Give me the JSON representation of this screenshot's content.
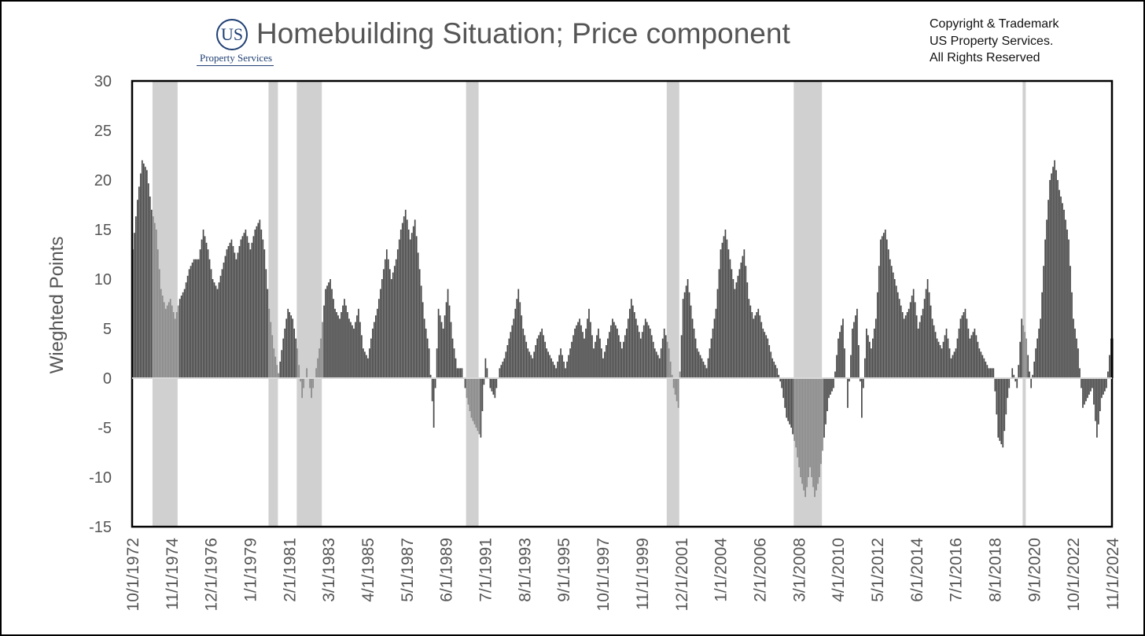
{
  "header": {
    "logo_mark": "US",
    "logo_text": "Property Services",
    "title": "Homebuilding Situation; Price component",
    "copyright_lines": [
      "Copyright & Trademark",
      "US Property Services.",
      "All Rights Reserved"
    ]
  },
  "colors": {
    "bar": "#474747",
    "recession_band": "#d0d0d0",
    "bar_in_recession": "#8a8a8a",
    "logo": "#1f3f73"
  },
  "chart_data": {
    "type": "bar",
    "title": "Homebuilding Situation; Price component",
    "xlabel": "",
    "ylabel": "Wieghted Points",
    "ylim": [
      -15,
      30
    ],
    "y_ticks": [
      30,
      25,
      20,
      15,
      10,
      5,
      0,
      -5,
      -10,
      -15
    ],
    "x_range": [
      "1972-10-01",
      "2024-11-01"
    ],
    "x_tick_labels": [
      "10/1/1972",
      "11/1/1974",
      "12/1/1976",
      "1/1/1979",
      "2/1/1981",
      "3/1/1983",
      "4/1/1985",
      "5/1/1987",
      "6/1/1989",
      "7/1/1991",
      "8/1/1993",
      "9/1/1995",
      "10/1/1997",
      "11/1/1999",
      "12/1/2001",
      "1/1/2004",
      "2/1/2006",
      "3/1/2008",
      "4/1/2010",
      "5/1/2012",
      "6/1/2014",
      "7/1/2016",
      "8/1/2018",
      "9/1/2020",
      "10/1/2022",
      "11/1/2024"
    ],
    "grid": false,
    "legend": "none",
    "recession_bands": [
      {
        "start": "1973-11-01",
        "end": "1975-03-01"
      },
      {
        "start": "1980-01-01",
        "end": "1980-07-01"
      },
      {
        "start": "1981-07-01",
        "end": "1982-11-01"
      },
      {
        "start": "1990-07-01",
        "end": "1991-03-01"
      },
      {
        "start": "2001-03-01",
        "end": "2001-11-01"
      },
      {
        "start": "2007-12-01",
        "end": "2009-06-01"
      },
      {
        "start": "2020-02-01",
        "end": "2020-04-01"
      }
    ],
    "series_note": "Monthly values approximated from the figure",
    "series": [
      {
        "points": [
          [
            "1972-10",
            13
          ],
          [
            "1973-01",
            18
          ],
          [
            "1973-04",
            22
          ],
          [
            "1973-07",
            21
          ],
          [
            "1973-10",
            17
          ],
          [
            "1974-01",
            15
          ],
          [
            "1974-04",
            9
          ],
          [
            "1974-07",
            7
          ],
          [
            "1974-10",
            8
          ],
          [
            "1975-01",
            6
          ],
          [
            "1975-04",
            8
          ],
          [
            "1975-07",
            9
          ],
          [
            "1975-10",
            11
          ],
          [
            "1976-01",
            12
          ],
          [
            "1976-04",
            12
          ],
          [
            "1976-07",
            15
          ],
          [
            "1976-10",
            13
          ],
          [
            "1977-01",
            10
          ],
          [
            "1977-04",
            9
          ],
          [
            "1977-07",
            11
          ],
          [
            "1977-10",
            13
          ],
          [
            "1978-01",
            14
          ],
          [
            "1978-04",
            12
          ],
          [
            "1978-07",
            14
          ],
          [
            "1978-10",
            15
          ],
          [
            "1979-01",
            13
          ],
          [
            "1979-04",
            15
          ],
          [
            "1979-07",
            16
          ],
          [
            "1979-10",
            13
          ],
          [
            "1980-01",
            7
          ],
          [
            "1980-04",
            3
          ],
          [
            "1980-07",
            0.5
          ],
          [
            "1980-10",
            4
          ],
          [
            "1981-01",
            7
          ],
          [
            "1981-04",
            6
          ],
          [
            "1981-07",
            3
          ],
          [
            "1981-10",
            -2
          ],
          [
            "1982-01",
            1
          ],
          [
            "1982-04",
            -2
          ],
          [
            "1982-07",
            1
          ],
          [
            "1982-10",
            4
          ],
          [
            "1983-01",
            9
          ],
          [
            "1983-04",
            10
          ],
          [
            "1983-07",
            7
          ],
          [
            "1983-10",
            6
          ],
          [
            "1984-01",
            8
          ],
          [
            "1984-04",
            6
          ],
          [
            "1984-07",
            5
          ],
          [
            "1984-10",
            7
          ],
          [
            "1985-01",
            3
          ],
          [
            "1985-04",
            2
          ],
          [
            "1985-07",
            5
          ],
          [
            "1985-10",
            7
          ],
          [
            "1986-01",
            10
          ],
          [
            "1986-04",
            13
          ],
          [
            "1986-07",
            10
          ],
          [
            "1986-10",
            12
          ],
          [
            "1987-01",
            15
          ],
          [
            "1987-04",
            17
          ],
          [
            "1987-07",
            14
          ],
          [
            "1987-10",
            16
          ],
          [
            "1988-01",
            11
          ],
          [
            "1988-04",
            6
          ],
          [
            "1988-07",
            3
          ],
          [
            "1988-10",
            -5
          ],
          [
            "1989-01",
            7
          ],
          [
            "1989-04",
            5
          ],
          [
            "1989-07",
            9
          ],
          [
            "1989-10",
            4
          ],
          [
            "1990-01",
            1
          ],
          [
            "1990-04",
            1
          ],
          [
            "1990-07",
            -2
          ],
          [
            "1990-10",
            -4
          ],
          [
            "1991-01",
            -5
          ],
          [
            "1991-04",
            -6
          ],
          [
            "1991-07",
            2
          ],
          [
            "1991-10",
            -1
          ],
          [
            "1992-01",
            -2
          ],
          [
            "1992-04",
            1
          ],
          [
            "1992-07",
            2
          ],
          [
            "1992-10",
            4
          ],
          [
            "1993-01",
            6
          ],
          [
            "1993-04",
            9
          ],
          [
            "1993-07",
            5
          ],
          [
            "1993-10",
            3
          ],
          [
            "1994-01",
            2
          ],
          [
            "1994-04",
            4
          ],
          [
            "1994-07",
            5
          ],
          [
            "1994-10",
            3
          ],
          [
            "1995-01",
            2
          ],
          [
            "1995-04",
            1
          ],
          [
            "1995-07",
            3
          ],
          [
            "1995-10",
            1
          ],
          [
            "1996-01",
            3
          ],
          [
            "1996-04",
            5
          ],
          [
            "1996-07",
            6
          ],
          [
            "1996-10",
            4
          ],
          [
            "1997-01",
            7
          ],
          [
            "1997-04",
            3
          ],
          [
            "1997-07",
            5
          ],
          [
            "1997-10",
            2
          ],
          [
            "1998-01",
            4
          ],
          [
            "1998-04",
            6
          ],
          [
            "1998-07",
            5
          ],
          [
            "1998-10",
            3
          ],
          [
            "1999-01",
            5
          ],
          [
            "1999-04",
            8
          ],
          [
            "1999-07",
            6
          ],
          [
            "1999-10",
            4
          ],
          [
            "2000-01",
            6
          ],
          [
            "2000-04",
            5
          ],
          [
            "2000-07",
            3
          ],
          [
            "2000-10",
            2
          ],
          [
            "2001-01",
            5
          ],
          [
            "2001-04",
            3
          ],
          [
            "2001-07",
            -1
          ],
          [
            "2001-10",
            -3
          ],
          [
            "2002-01",
            8
          ],
          [
            "2002-04",
            10
          ],
          [
            "2002-07",
            6
          ],
          [
            "2002-10",
            3
          ],
          [
            "2003-01",
            2
          ],
          [
            "2003-04",
            1
          ],
          [
            "2003-07",
            4
          ],
          [
            "2003-10",
            7
          ],
          [
            "2004-01",
            13
          ],
          [
            "2004-04",
            15
          ],
          [
            "2004-07",
            12
          ],
          [
            "2004-10",
            9
          ],
          [
            "2005-01",
            11
          ],
          [
            "2005-04",
            13
          ],
          [
            "2005-07",
            8
          ],
          [
            "2005-10",
            6
          ],
          [
            "2006-01",
            7
          ],
          [
            "2006-04",
            5
          ],
          [
            "2006-07",
            4
          ],
          [
            "2006-10",
            2
          ],
          [
            "2007-01",
            1
          ],
          [
            "2007-04",
            -1
          ],
          [
            "2007-07",
            -4
          ],
          [
            "2007-10",
            -5
          ],
          [
            "2008-01",
            -7
          ],
          [
            "2008-04",
            -10
          ],
          [
            "2008-07",
            -12
          ],
          [
            "2008-10",
            -9
          ],
          [
            "2009-01",
            -12
          ],
          [
            "2009-04",
            -10
          ],
          [
            "2009-07",
            -6
          ],
          [
            "2009-10",
            -2
          ],
          [
            "2010-01",
            -1
          ],
          [
            "2010-04",
            4
          ],
          [
            "2010-07",
            6
          ],
          [
            "2010-10",
            -3
          ],
          [
            "2011-01",
            5
          ],
          [
            "2011-04",
            7
          ],
          [
            "2011-07",
            -4
          ],
          [
            "2011-10",
            5
          ],
          [
            "2012-01",
            3
          ],
          [
            "2012-04",
            6
          ],
          [
            "2012-07",
            14
          ],
          [
            "2012-10",
            15
          ],
          [
            "2013-01",
            12
          ],
          [
            "2013-04",
            10
          ],
          [
            "2013-07",
            8
          ],
          [
            "2013-10",
            6
          ],
          [
            "2014-01",
            7
          ],
          [
            "2014-04",
            9
          ],
          [
            "2014-07",
            5
          ],
          [
            "2014-10",
            7
          ],
          [
            "2015-01",
            10
          ],
          [
            "2015-04",
            6
          ],
          [
            "2015-07",
            4
          ],
          [
            "2015-10",
            3
          ],
          [
            "2016-01",
            5
          ],
          [
            "2016-04",
            2
          ],
          [
            "2016-07",
            3
          ],
          [
            "2016-10",
            6
          ],
          [
            "2017-01",
            7
          ],
          [
            "2017-04",
            4
          ],
          [
            "2017-07",
            5
          ],
          [
            "2017-10",
            3
          ],
          [
            "2018-01",
            2
          ],
          [
            "2018-04",
            1
          ],
          [
            "2018-07",
            1
          ],
          [
            "2018-10",
            -6
          ],
          [
            "2019-01",
            -7
          ],
          [
            "2019-04",
            -2
          ],
          [
            "2019-07",
            1
          ],
          [
            "2019-10",
            -1
          ],
          [
            "2020-01",
            6
          ],
          [
            "2020-04",
            4
          ],
          [
            "2020-07",
            -1
          ],
          [
            "2020-10",
            3
          ],
          [
            "2021-01",
            6
          ],
          [
            "2021-04",
            14
          ],
          [
            "2021-07",
            20
          ],
          [
            "2021-10",
            22
          ],
          [
            "2022-01",
            19
          ],
          [
            "2022-04",
            17
          ],
          [
            "2022-07",
            14
          ],
          [
            "2022-10",
            6
          ],
          [
            "2023-01",
            3
          ],
          [
            "2023-04",
            -3
          ],
          [
            "2023-07",
            -2
          ],
          [
            "2023-10",
            -1
          ],
          [
            "2024-01",
            -6
          ],
          [
            "2024-04",
            -2
          ],
          [
            "2024-07",
            -1
          ],
          [
            "2024-10",
            4
          ]
        ]
      }
    ]
  }
}
